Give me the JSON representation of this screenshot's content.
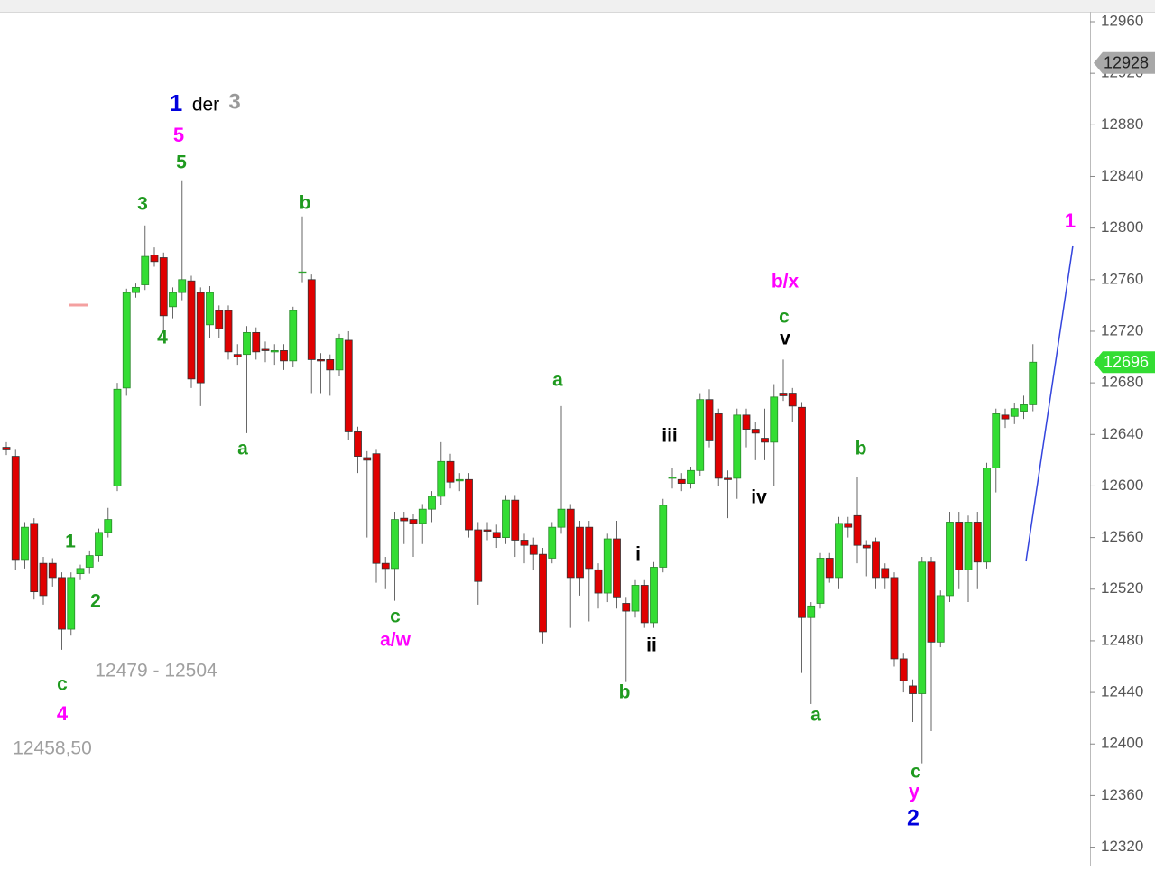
{
  "chart_data": {
    "type": "candlestick",
    "up_color": "#33dd33",
    "down_color": "#e00000",
    "ylim": [
      12305,
      12967
    ],
    "yticks": [
      12960,
      12920,
      12880,
      12840,
      12800,
      12760,
      12720,
      12680,
      12640,
      12600,
      12560,
      12520,
      12480,
      12440,
      12400,
      12360,
      12320
    ],
    "ohlc": [
      [
        12630,
        12634,
        12624,
        12628
      ],
      [
        12623,
        12628,
        12535,
        12543
      ],
      [
        12543,
        12572,
        12536,
        12568
      ],
      [
        12571,
        12575,
        12512,
        12518
      ],
      [
        12540,
        12545,
        12508,
        12515
      ],
      [
        12540,
        12544,
        12522,
        12529
      ],
      [
        12529,
        12533,
        12473,
        12489
      ],
      [
        12489,
        12533,
        12484,
        12529
      ],
      [
        12532,
        12539,
        12527,
        12536
      ],
      [
        12537,
        12550,
        12532,
        12546
      ],
      [
        12546,
        12567,
        12541,
        12564
      ],
      [
        12564,
        12583,
        12560,
        12574
      ],
      [
        12600,
        12680,
        12596,
        12675
      ],
      [
        12676,
        12753,
        12670,
        12750
      ],
      [
        12750,
        12757,
        12746,
        12754
      ],
      [
        12756,
        12802,
        12752,
        12778
      ],
      [
        12779,
        12785,
        12770,
        12774
      ],
      [
        12777,
        12781,
        12720,
        12732
      ],
      [
        12739,
        12754,
        12730,
        12750
      ],
      [
        12750,
        12837,
        12744,
        12760
      ],
      [
        12759,
        12763,
        12676,
        12683
      ],
      [
        12750,
        12754,
        12662,
        12680
      ],
      [
        12725,
        12755,
        12715,
        12750
      ],
      [
        12736,
        12740,
        12715,
        12722
      ],
      [
        12736,
        12740,
        12698,
        12704
      ],
      [
        12702,
        12710,
        12694,
        12700
      ],
      [
        12702,
        12724,
        12641,
        12719
      ],
      [
        12719,
        12723,
        12698,
        12704
      ],
      [
        12706,
        12712,
        12696,
        12705
      ],
      [
        12704,
        12710,
        12694,
        12705
      ],
      [
        12705,
        12710,
        12690,
        12697
      ],
      [
        12697,
        12739,
        12692,
        12736
      ],
      [
        12765,
        12809,
        12758,
        12766
      ],
      [
        12760,
        12764,
        12672,
        12698
      ],
      [
        12698,
        12703,
        12672,
        12697
      ],
      [
        12698,
        12702,
        12670,
        12690
      ],
      [
        12690,
        12718,
        12685,
        12714
      ],
      [
        12713,
        12720,
        12636,
        12642
      ],
      [
        12642,
        12646,
        12610,
        12623
      ],
      [
        12622,
        12627,
        12560,
        12620
      ],
      [
        12625,
        12628,
        12525,
        12540
      ],
      [
        12540,
        12545,
        12520,
        12536
      ],
      [
        12536,
        12580,
        12511,
        12574
      ],
      [
        12575,
        12580,
        12555,
        12573
      ],
      [
        12574,
        12578,
        12545,
        12571
      ],
      [
        12571,
        12586,
        12555,
        12582
      ],
      [
        12582,
        12596,
        12572,
        12592
      ],
      [
        12592,
        12634,
        12585,
        12619
      ],
      [
        12619,
        12625,
        12598,
        12603
      ],
      [
        12604,
        12610,
        12596,
        12605
      ],
      [
        12605,
        12610,
        12560,
        12566
      ],
      [
        12566,
        12572,
        12508,
        12526
      ],
      [
        12566,
        12572,
        12558,
        12565
      ],
      [
        12564,
        12570,
        12552,
        12560
      ],
      [
        12560,
        12593,
        12555,
        12589
      ],
      [
        12589,
        12593,
        12545,
        12558
      ],
      [
        12558,
        12563,
        12540,
        12554
      ],
      [
        12554,
        12560,
        12535,
        12547
      ],
      [
        12547,
        12552,
        12478,
        12487
      ],
      [
        12544,
        12572,
        12540,
        12568
      ],
      [
        12568,
        12662,
        12563,
        12582
      ],
      [
        12582,
        12586,
        12490,
        12529
      ],
      [
        12568,
        12573,
        12515,
        12529
      ],
      [
        12568,
        12573,
        12495,
        12536
      ],
      [
        12535,
        12540,
        12505,
        12517
      ],
      [
        12517,
        12563,
        12510,
        12559
      ],
      [
        12559,
        12573,
        12505,
        12514
      ],
      [
        12509,
        12514,
        12448,
        12503
      ],
      [
        12503,
        12527,
        12498,
        12523
      ],
      [
        12523,
        12527,
        12490,
        12494
      ],
      [
        12494,
        12541,
        12490,
        12537
      ],
      [
        12537,
        12590,
        12533,
        12585
      ],
      [
        12606,
        12614,
        12598,
        12607
      ],
      [
        12605,
        12610,
        12596,
        12602
      ],
      [
        12602,
        12615,
        12598,
        12612
      ],
      [
        12612,
        12672,
        12608,
        12667
      ],
      [
        12667,
        12675,
        12630,
        12635
      ],
      [
        12656,
        12660,
        12600,
        12606
      ],
      [
        12606,
        12612,
        12575,
        12605
      ],
      [
        12606,
        12660,
        12590,
        12655
      ],
      [
        12655,
        12660,
        12630,
        12644
      ],
      [
        12644,
        12650,
        12620,
        12641
      ],
      [
        12637,
        12660,
        12620,
        12634
      ],
      [
        12634,
        12679,
        12600,
        12669
      ],
      [
        12672,
        12698,
        12666,
        12670
      ],
      [
        12672,
        12676,
        12650,
        12662
      ],
      [
        12661,
        12665,
        12455,
        12498
      ],
      [
        12498,
        12510,
        12431,
        12507
      ],
      [
        12509,
        12548,
        12505,
        12544
      ],
      [
        12544,
        12548,
        12525,
        12529
      ],
      [
        12529,
        12576,
        12520,
        12571
      ],
      [
        12571,
        12576,
        12560,
        12568
      ],
      [
        12577,
        12607,
        12540,
        12554
      ],
      [
        12554,
        12558,
        12530,
        12552
      ],
      [
        12557,
        12560,
        12520,
        12529
      ],
      [
        12536,
        12540,
        12520,
        12529
      ],
      [
        12529,
        12533,
        12460,
        12466
      ],
      [
        12466,
        12470,
        12440,
        12449
      ],
      [
        12445,
        12450,
        12417,
        12439
      ],
      [
        12439,
        12545,
        12385,
        12541
      ],
      [
        12541,
        12545,
        12410,
        12479
      ],
      [
        12479,
        12519,
        12475,
        12515
      ],
      [
        12515,
        12580,
        12510,
        12572
      ],
      [
        12572,
        12580,
        12520,
        12535
      ],
      [
        12535,
        12577,
        12510,
        12572
      ],
      [
        12572,
        12580,
        12520,
        12541
      ],
      [
        12541,
        12618,
        12536,
        12614
      ],
      [
        12614,
        12660,
        12595,
        12656
      ],
      [
        12655,
        12660,
        12645,
        12652
      ],
      [
        12654,
        12664,
        12648,
        12660
      ],
      [
        12658,
        12670,
        12652,
        12663
      ],
      [
        12663,
        12710,
        12658,
        12696
      ]
    ],
    "price_markers": [
      {
        "value": 12928,
        "color": "#a8a8a8"
      },
      {
        "value": 12696,
        "color": "#33dd33"
      }
    ],
    "annotations": [
      {
        "text": "1",
        "color": "#0000dd"
      },
      {
        "text": "der",
        "color": "#000000"
      },
      {
        "text": "3",
        "color": "#999999"
      },
      {
        "text": "5",
        "color": "#ff00ff"
      },
      {
        "text": "5",
        "color": "#1f9a1f"
      },
      {
        "text": "3",
        "color": "#1f9a1f"
      },
      {
        "text": "4",
        "color": "#1f9a1f"
      },
      {
        "text": "b",
        "color": "#1f9a1f"
      },
      {
        "text": "a",
        "color": "#1f9a1f"
      },
      {
        "text": "1",
        "color": "#1f9a1f"
      },
      {
        "text": "2",
        "color": "#1f9a1f"
      },
      {
        "text": "c",
        "color": "#1f9a1f"
      },
      {
        "text": "4",
        "color": "#ff00ff"
      },
      {
        "text": "12479 - 12504",
        "color": "#a0a0a0"
      },
      {
        "text": "12458,50",
        "color": "#a0a0a0"
      },
      {
        "text": "a",
        "color": "#1f9a1f"
      },
      {
        "text": "c",
        "color": "#1f9a1f"
      },
      {
        "text": "a/w",
        "color": "#ff00ff"
      },
      {
        "text": "b",
        "color": "#1f9a1f"
      },
      {
        "text": "i",
        "color": "#000000"
      },
      {
        "text": "ii",
        "color": "#000000"
      },
      {
        "text": "iii",
        "color": "#000000"
      },
      {
        "text": "iv",
        "color": "#000000"
      },
      {
        "text": "v",
        "color": "#000000"
      },
      {
        "text": "c",
        "color": "#1f9a1f"
      },
      {
        "text": "b/x",
        "color": "#ff00ff"
      },
      {
        "text": "b",
        "color": "#1f9a1f"
      },
      {
        "text": "a",
        "color": "#1f9a1f"
      },
      {
        "text": "c",
        "color": "#1f9a1f"
      },
      {
        "text": "y",
        "color": "#ff00ff"
      },
      {
        "text": "2",
        "color": "#0000dd"
      },
      {
        "text": "1",
        "color": "#ff00ff"
      }
    ]
  }
}
